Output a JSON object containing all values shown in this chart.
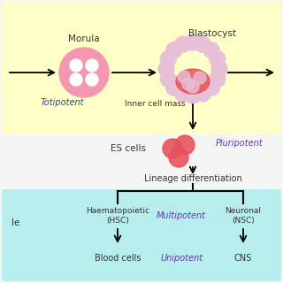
{
  "bg_color": "#f5f5f5",
  "yellow_bg": "#ffffc8",
  "cyan_bg": "#b8eded",
  "morula_color": "#f597b0",
  "morula_ring_color": "#f597b0",
  "inner_mass_color": "#e8505a",
  "blasto_ring_color": "#e8c0d8",
  "purple_color": "#6633bb",
  "text_color": "#333333",
  "navy_color": "#334499",
  "label_morula": "Morula",
  "label_totipotent": "Totipotent",
  "label_blastocyst": "Blastocyst",
  "label_innercellmass": "Inner cell mass",
  "label_escells": "ES cells",
  "label_pluripotent": "Pluripotent",
  "label_lineage": "Lineage differentiation",
  "label_haema": "Haematopoietic\n(HSC)",
  "label_multipotent": "Multipotent",
  "label_neuronal": "Neuronal\n(NSC)",
  "label_bloodcells": "Blood cells",
  "label_unipotent": "Unipotent",
  "label_cns": "CNS",
  "label_le": "le"
}
